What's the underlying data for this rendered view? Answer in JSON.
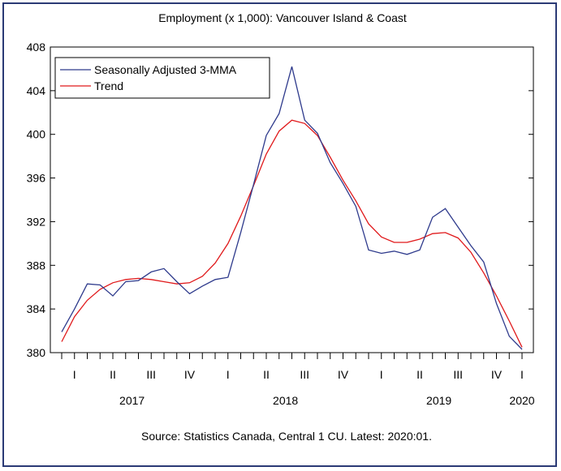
{
  "chart_data": {
    "type": "line",
    "title": "Employment (x 1,000): Vancouver Island & Coast",
    "source": "Source:  Statistics Canada, Central 1 CU. Latest: 2020:01.",
    "ylim": [
      380,
      408
    ],
    "yticks": [
      380,
      384,
      388,
      392,
      396,
      400,
      404,
      408
    ],
    "x_range": [
      0,
      36
    ],
    "quarter_ticks": [
      {
        "label": "I",
        "x": 1
      },
      {
        "label": "II",
        "x": 4
      },
      {
        "label": "III",
        "x": 7
      },
      {
        "label": "IV",
        "x": 10
      },
      {
        "label": "I",
        "x": 13
      },
      {
        "label": "II",
        "x": 16
      },
      {
        "label": "III",
        "x": 19
      },
      {
        "label": "IV",
        "x": 22
      },
      {
        "label": "I",
        "x": 25
      },
      {
        "label": "II",
        "x": 28
      },
      {
        "label": "III",
        "x": 31
      },
      {
        "label": "IV",
        "x": 34
      },
      {
        "label": "I",
        "x": 36
      }
    ],
    "years": [
      {
        "label": "2017",
        "x": 5.5
      },
      {
        "label": "2018",
        "x": 17.5
      },
      {
        "label": "2019",
        "x": 29.5
      },
      {
        "label": "2020",
        "x": 36
      }
    ],
    "legend_position": "top-left",
    "grid": false,
    "series": [
      {
        "name": "Seasonally Adjusted 3-MMA",
        "color": "#2e3a8c",
        "x": [
          0,
          1,
          2,
          3,
          4,
          5,
          6,
          7,
          8,
          9,
          10,
          11,
          12,
          13,
          14,
          15,
          16,
          17,
          18,
          19,
          20,
          21,
          22,
          23,
          24,
          25,
          26,
          27,
          28,
          29,
          30,
          31,
          32,
          33,
          34,
          35,
          36
        ],
        "values": [
          381.9,
          384.0,
          386.3,
          386.2,
          385.2,
          386.5,
          386.6,
          387.4,
          387.7,
          386.5,
          385.4,
          386.1,
          386.7,
          386.9,
          391.0,
          395.4,
          399.9,
          401.9,
          406.2,
          401.3,
          400.1,
          397.4,
          395.5,
          393.4,
          389.4,
          389.1,
          389.3,
          389.0,
          389.4,
          392.4,
          393.2,
          391.5,
          389.8,
          388.3,
          384.5,
          381.5,
          380.3
        ]
      },
      {
        "name": "Trend",
        "color": "#e0191b",
        "x": [
          0,
          1,
          2,
          3,
          4,
          5,
          6,
          7,
          8,
          9,
          10,
          11,
          12,
          13,
          14,
          15,
          16,
          17,
          18,
          19,
          20,
          21,
          22,
          23,
          24,
          25,
          26,
          27,
          28,
          29,
          30,
          31,
          32,
          33,
          34,
          35,
          36
        ],
        "values": [
          381.0,
          383.3,
          384.8,
          385.8,
          386.4,
          386.7,
          386.8,
          386.7,
          386.5,
          386.3,
          386.4,
          387.0,
          388.2,
          390.0,
          392.5,
          395.3,
          398.2,
          400.3,
          401.3,
          401.0,
          399.9,
          397.9,
          395.8,
          393.9,
          391.8,
          390.6,
          390.1,
          390.1,
          390.4,
          390.9,
          391.0,
          390.5,
          389.2,
          387.3,
          385.2,
          382.9,
          380.5
        ]
      }
    ]
  }
}
